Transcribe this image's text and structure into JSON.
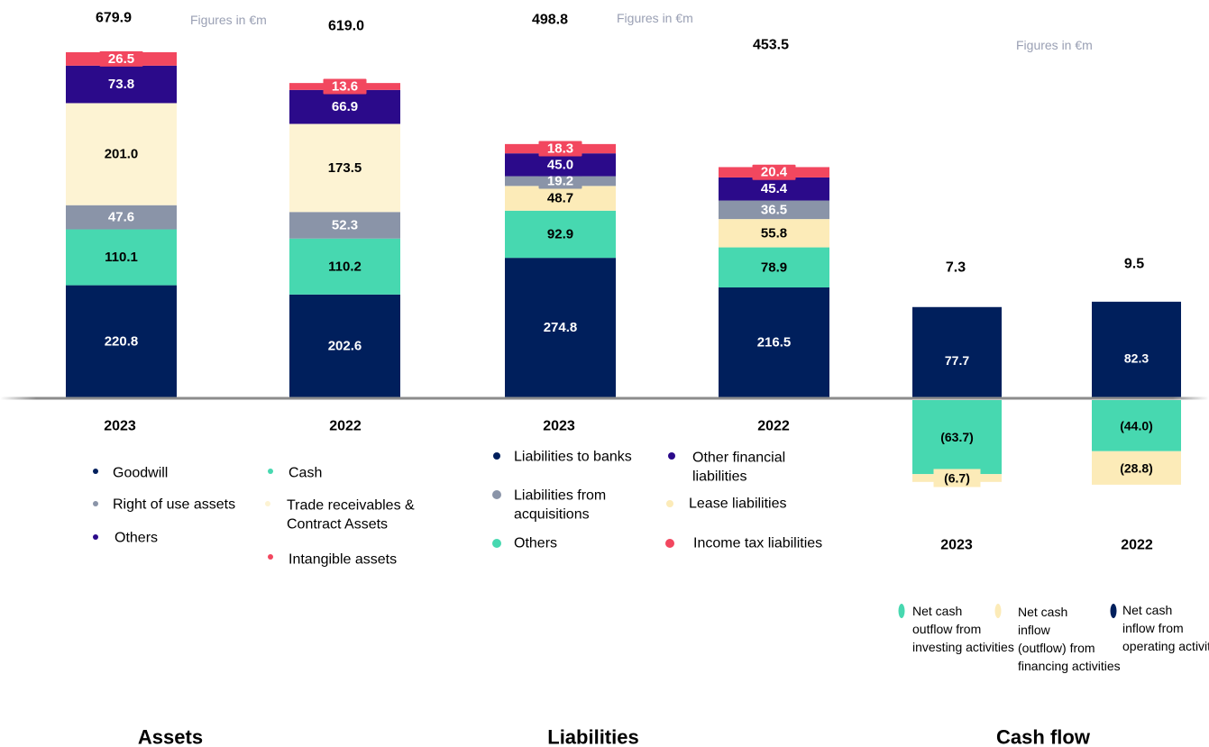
{
  "colors": {
    "goodwill": "#001f5c",
    "cash": "#47d8b0",
    "right_of_use": "#8a94a8",
    "trade_receivables": "#fdf3d3",
    "others_assets": "#2b0a8a",
    "intangible": "#f2475f",
    "liab_banks": "#001f5c",
    "liab_other_fin": "#2b0a8a",
    "liab_acq": "#8a94a8",
    "liab_lease": "#fcebb8",
    "liab_others": "#47d8b0",
    "liab_tax": "#f2475f",
    "cf_investing": "#47d8b0",
    "cf_financing": "#fcebb8",
    "cf_operating": "#001f5c",
    "label_dark": "#000000",
    "label_light": "#ffffff",
    "note": "#9aa0b4",
    "baseline": "#8c8c8c"
  },
  "chart_data": [
    {
      "type": "bar",
      "stacked": true,
      "title": "Assets",
      "note": "Figures in €m",
      "categories": [
        "2023",
        "2022"
      ],
      "totals": [
        "679.9",
        "619.0"
      ],
      "series": [
        {
          "name": "Goodwill",
          "color_key": "goodwill",
          "values": [
            220.8,
            202.6
          ],
          "labels": [
            "220.8",
            "202.6"
          ]
        },
        {
          "name": "Cash",
          "color_key": "cash",
          "values": [
            110.1,
            110.2
          ],
          "labels": [
            "110.1",
            "110.2"
          ]
        },
        {
          "name": "Right of use assets",
          "color_key": "right_of_use",
          "values": [
            47.6,
            52.3
          ],
          "labels": [
            "47.6",
            "52.3"
          ]
        },
        {
          "name": "Trade receivables & Contract Assets",
          "color_key": "trade_receivables",
          "values": [
            201.0,
            173.5
          ],
          "labels": [
            "201.0",
            "173.5"
          ]
        },
        {
          "name": "Others",
          "color_key": "others_assets",
          "values": [
            73.8,
            66.9
          ],
          "labels": [
            "73.8",
            "66.9"
          ]
        },
        {
          "name": "Intangible assets",
          "color_key": "intangible",
          "values": [
            26.5,
            13.6
          ],
          "labels": [
            "26.5",
            "13.6"
          ]
        }
      ],
      "legend": [
        {
          "text": "Goodwill",
          "color_key": "goodwill"
        },
        {
          "text": "Cash",
          "color_key": "cash"
        },
        {
          "text": "Right of use assets",
          "color_key": "right_of_use"
        },
        {
          "text": "Trade receivables & Contract Assets",
          "color_key": "trade_receivables"
        },
        {
          "text": "Others",
          "color_key": "others_assets"
        },
        {
          "text": "Intangible assets",
          "color_key": "intangible"
        }
      ]
    },
    {
      "type": "bar",
      "stacked": true,
      "title": "Liabilities",
      "note": "Figures in €m",
      "categories": [
        "2023",
        "2022"
      ],
      "totals": [
        "498.8",
        "453.5"
      ],
      "series": [
        {
          "name": "Liabilities to banks",
          "color_key": "liab_banks",
          "values": [
            274.8,
            216.5
          ],
          "labels": [
            "274.8",
            "216.5"
          ]
        },
        {
          "name": "Others",
          "color_key": "liab_others",
          "values": [
            92.9,
            78.9
          ],
          "labels": [
            "92.9",
            "78.9"
          ]
        },
        {
          "name": "Lease liabilities",
          "color_key": "liab_lease",
          "values": [
            48.7,
            55.8
          ],
          "labels": [
            "48.7",
            "55.8"
          ]
        },
        {
          "name": "Liabilities from acquisitions",
          "color_key": "liab_acq",
          "values": [
            19.2,
            36.5
          ],
          "labels": [
            "19.2",
            "36.5"
          ]
        },
        {
          "name": "Other financial liabilities",
          "color_key": "liab_other_fin",
          "values": [
            45.0,
            45.4
          ],
          "labels": [
            "45.0",
            "45.4"
          ]
        },
        {
          "name": "Income tax liabilities",
          "color_key": "liab_tax",
          "values": [
            18.3,
            20.4
          ],
          "labels": [
            "18.3",
            "20.4"
          ]
        }
      ],
      "legend": [
        {
          "text": "Liabilities to banks",
          "color_key": "liab_banks"
        },
        {
          "text": "Other financial liabilities",
          "color_key": "liab_other_fin"
        },
        {
          "text": "Liabilities from acquisitions",
          "color_key": "liab_acq"
        },
        {
          "text": "Lease liabilities",
          "color_key": "liab_lease"
        },
        {
          "text": "Others",
          "color_key": "liab_others"
        },
        {
          "text": "Income tax liabilities",
          "color_key": "liab_tax"
        }
      ]
    },
    {
      "type": "bar",
      "stacked": true,
      "title": "Cash flow",
      "note": "Figures in €m",
      "categories": [
        "2023",
        "2022"
      ],
      "totals": [
        "7.3",
        "9.5"
      ],
      "series": [
        {
          "name": "Net cash inflow from operating activities",
          "color_key": "cf_operating",
          "values": [
            77.7,
            82.3
          ],
          "labels": [
            "77.7",
            "82.3"
          ]
        },
        {
          "name": "Net cash outflow from investing activities",
          "color_key": "cf_investing",
          "values": [
            -63.7,
            -44.0
          ],
          "labels": [
            "(63.7)",
            "(44.0)"
          ]
        },
        {
          "name": "Net cash inflow (outflow) from financing activities",
          "color_key": "cf_financing",
          "values": [
            -6.7,
            -28.8
          ],
          "labels": [
            "(6.7)",
            "(28.8)"
          ]
        }
      ],
      "legend": [
        {
          "text": "Net cash outflow from investing activities",
          "color_key": "cf_investing"
        },
        {
          "text": "Net cash inflow (outflow) from financing activities",
          "color_key": "cf_financing"
        },
        {
          "text": "Net cash inflow from operating activities",
          "color_key": "cf_operating"
        }
      ]
    }
  ]
}
